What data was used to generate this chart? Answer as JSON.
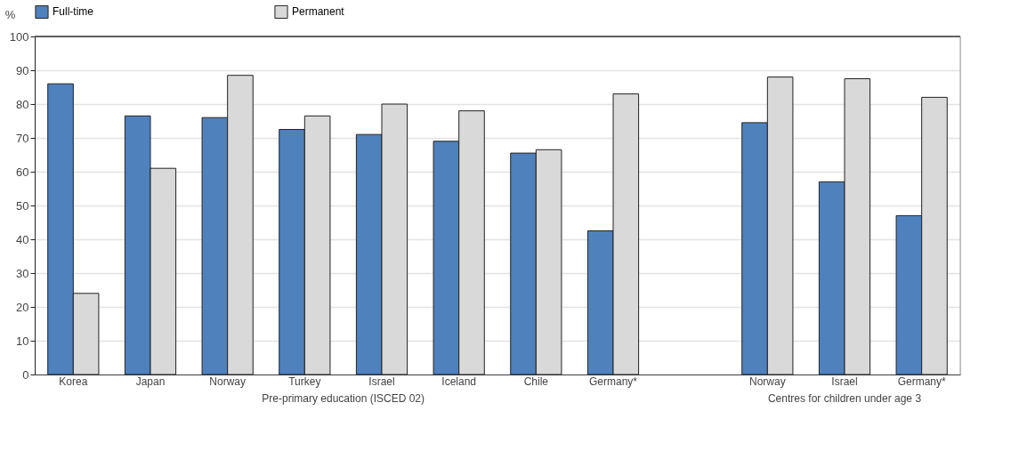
{
  "chart_data": {
    "type": "bar",
    "ylabel": "%",
    "categories": [
      "Korea",
      "Japan",
      "Norway",
      "Turkey",
      "Israel",
      "Iceland",
      "Chile",
      "Germany*",
      null,
      "Norway",
      "Israel",
      "Germany*"
    ],
    "series": [
      {
        "name": "Full-time",
        "color": "#4f81bd",
        "values": [
          86,
          76.5,
          76,
          72.5,
          71,
          69,
          65.5,
          42.5,
          null,
          74.5,
          57,
          47
        ]
      },
      {
        "name": "Permanent",
        "color": "#d9d9d9",
        "values": [
          24,
          61,
          88.5,
          76.5,
          80,
          78,
          66.5,
          83,
          null,
          88,
          87.5,
          82
        ]
      }
    ],
    "ylim": [
      0,
      100
    ],
    "yticks": [
      0,
      10,
      20,
      30,
      40,
      50,
      60,
      70,
      80,
      90,
      100
    ],
    "grid": "y",
    "legend": "top",
    "annotations": [
      "Pre-primary education (ISCED 02)",
      "Centres for children under age 3"
    ]
  }
}
